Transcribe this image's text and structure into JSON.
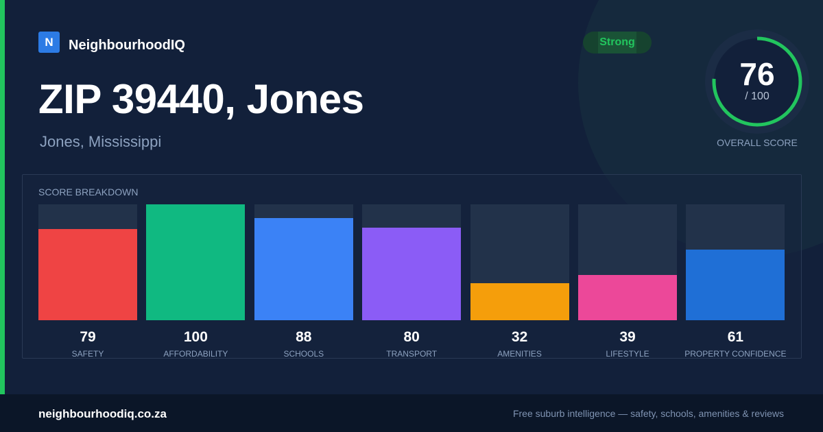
{
  "brand": {
    "logo_letter": "N",
    "name": "NeighbourhoodIQ"
  },
  "header": {
    "title": "ZIP 39440, Jones",
    "subtitle": "Jones, Mississippi",
    "badge": "Strong"
  },
  "overall": {
    "value": "76",
    "max": "/ 100",
    "label": "OVERALL SCORE",
    "fraction": 0.76,
    "color": "#22c55e"
  },
  "breakdown": {
    "title": "SCORE BREAKDOWN",
    "categories": [
      {
        "label": "SAFETY",
        "value": 79,
        "color": "#ef4444"
      },
      {
        "label": "AFFORDABILITY",
        "value": 100,
        "color": "#10b981"
      },
      {
        "label": "SCHOOLS",
        "value": 88,
        "color": "#3b82f6"
      },
      {
        "label": "TRANSPORT",
        "value": 80,
        "color": "#8b5cf6"
      },
      {
        "label": "AMENITIES",
        "value": 32,
        "color": "#f59e0b"
      },
      {
        "label": "LIFESTYLE",
        "value": 39,
        "color": "#ec4899"
      },
      {
        "label": "PROPERTY CONFIDENCE",
        "value": 61,
        "color": "#1f6fd6"
      }
    ]
  },
  "footer": {
    "url": "neighbourhoodiq.co.za",
    "tagline": "Free suburb intelligence — safety, schools, amenities & reviews"
  }
}
